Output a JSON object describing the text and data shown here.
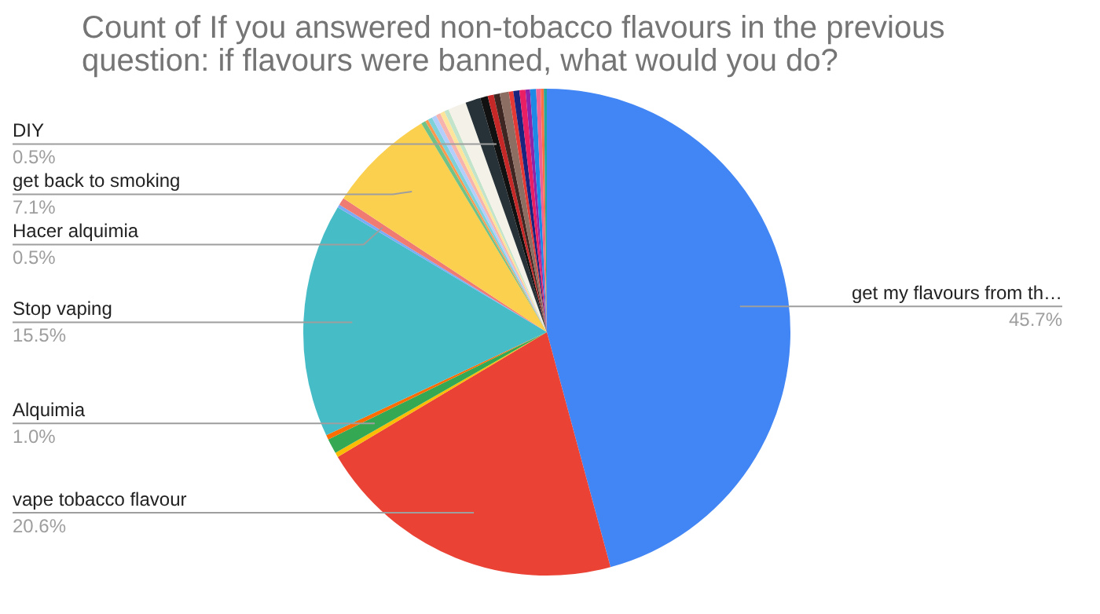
{
  "chart_data": {
    "type": "pie",
    "title": "Count of If you answered non-tobacco flavours in the previous question: if flavours were banned, what would you do?",
    "categories": [
      "get my flavours from th…",
      "vape tobacco flavour",
      null,
      "Alquimia",
      null,
      "Stop vaping",
      null,
      "Hacer alquimia",
      "get back to smoking",
      null,
      null,
      null,
      null,
      null,
      null,
      null,
      null,
      null,
      "DIY",
      null,
      null,
      null,
      null,
      null,
      null,
      null,
      null,
      null,
      null,
      null
    ],
    "values": [
      45.7,
      20.6,
      0.3,
      1.0,
      0.3,
      15.5,
      0.2,
      0.5,
      7.1,
      0.3,
      0.2,
      0.3,
      0.3,
      0.3,
      0.3,
      0.3,
      1.2,
      1.0,
      0.5,
      0.4,
      0.4,
      0.6,
      0.3,
      0.4,
      0.4,
      0.3,
      0.4,
      0.3,
      0.2,
      0.2
    ],
    "value_labels": [
      "45.7%",
      "20.6%",
      null,
      "1.0%",
      null,
      "15.5%",
      null,
      "0.5%",
      "7.1%",
      null,
      null,
      null,
      null,
      null,
      null,
      null,
      null,
      null,
      "0.5%",
      null,
      null,
      null,
      null,
      null,
      null,
      null,
      null,
      null,
      null,
      null
    ],
    "colors": [
      "#4285f4",
      "#ea4335",
      "#fbbc04",
      "#34a853",
      "#ff6d01",
      "#46bdc6",
      "#7baaf7",
      "#f07b72",
      "#fcd04f",
      "#71c287",
      "#ff994d",
      "#7ed1d7",
      "#b3cefb",
      "#f7b4ae",
      "#fde49b",
      "#c2e4ca",
      "#f3f1e8",
      "#263238",
      "#111111",
      "#c62828",
      "#3e2723",
      "#8d6e63",
      "#e53935",
      "#1a237e",
      "#e91e63",
      "#8e24aa",
      "#1e88e5",
      "#f06292",
      "#ff7043",
      "#26a69a"
    ],
    "legend": false
  }
}
